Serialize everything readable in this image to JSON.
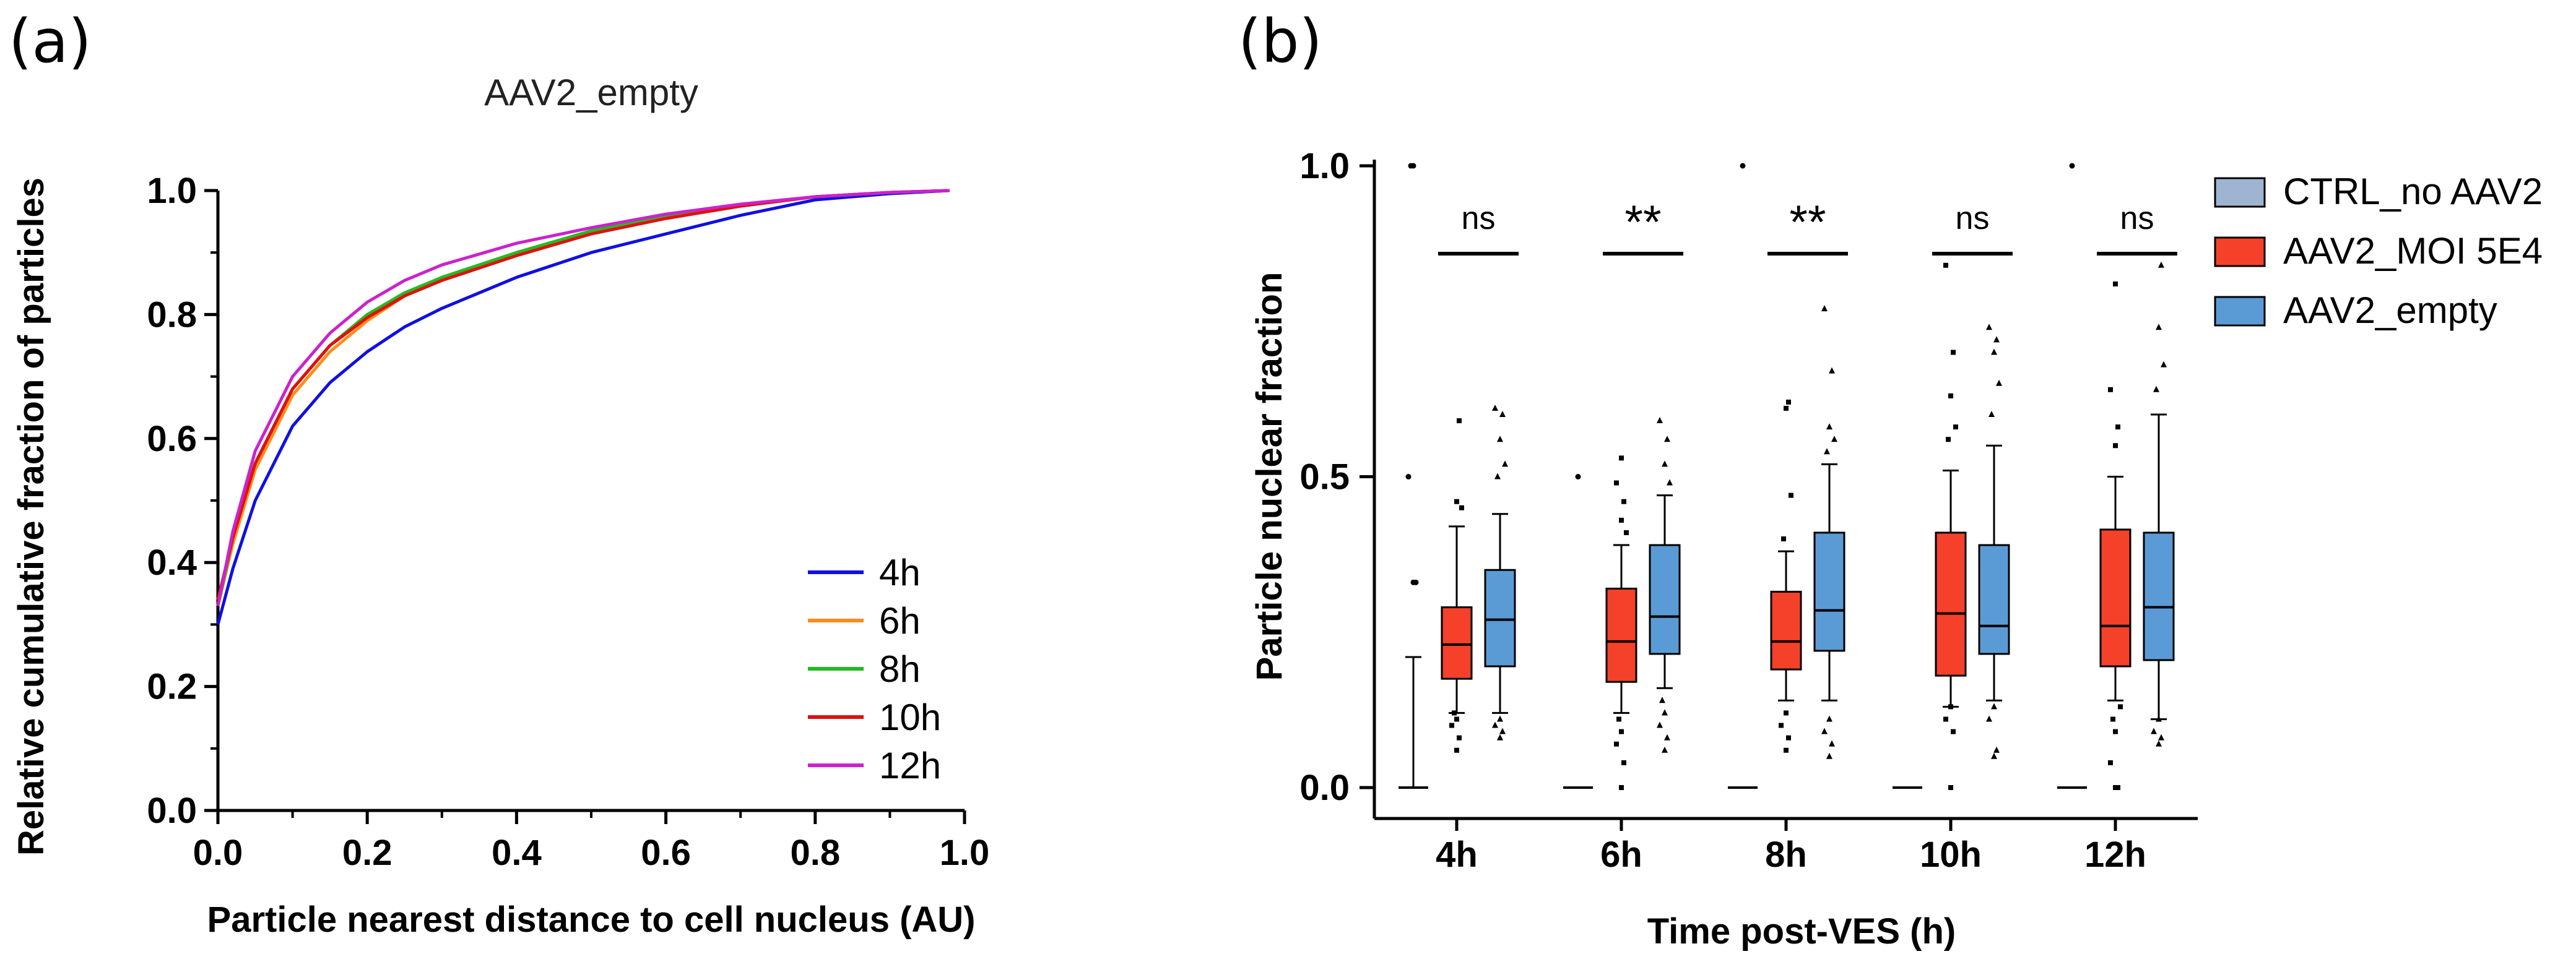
{
  "chart_data": [
    {
      "panel": "(a)",
      "type": "line",
      "title": "AAV2_empty",
      "xlabel": "Particle nearest distance to cell nucleus (AU)",
      "ylabel": "Relative cumulative fraction of particles",
      "xlim": [
        0.0,
        1.0
      ],
      "ylim": [
        0.0,
        1.0
      ],
      "xticks": [
        "0.0",
        "0.2",
        "0.4",
        "0.6",
        "0.8",
        "1.0"
      ],
      "yticks": [
        "0.0",
        "0.2",
        "0.4",
        "0.6",
        "0.8",
        "1.0"
      ],
      "legend_position": "bottom-right",
      "x": [
        0.0,
        0.02,
        0.05,
        0.1,
        0.15,
        0.2,
        0.25,
        0.3,
        0.4,
        0.5,
        0.6,
        0.7,
        0.8,
        0.9,
        0.98
      ],
      "series": [
        {
          "name": "4h",
          "color": "#1010e0",
          "values": [
            0.3,
            0.39,
            0.5,
            0.62,
            0.69,
            0.74,
            0.78,
            0.81,
            0.86,
            0.9,
            0.93,
            0.96,
            0.985,
            0.995,
            1.0
          ]
        },
        {
          "name": "6h",
          "color": "#ff8c1a",
          "values": [
            0.33,
            0.43,
            0.55,
            0.67,
            0.74,
            0.79,
            0.83,
            0.86,
            0.9,
            0.93,
            0.955,
            0.975,
            0.99,
            0.997,
            1.0
          ]
        },
        {
          "name": "8h",
          "color": "#22bb22",
          "values": [
            0.33,
            0.44,
            0.56,
            0.68,
            0.75,
            0.8,
            0.835,
            0.86,
            0.9,
            0.935,
            0.96,
            0.977,
            0.99,
            0.997,
            1.0
          ]
        },
        {
          "name": "10h",
          "color": "#e01010",
          "values": [
            0.34,
            0.44,
            0.56,
            0.68,
            0.75,
            0.795,
            0.83,
            0.855,
            0.895,
            0.93,
            0.955,
            0.975,
            0.99,
            0.997,
            1.0
          ]
        },
        {
          "name": "12h",
          "color": "#cc22cc",
          "values": [
            0.33,
            0.45,
            0.58,
            0.7,
            0.77,
            0.82,
            0.855,
            0.88,
            0.915,
            0.94,
            0.962,
            0.978,
            0.99,
            0.997,
            1.0
          ]
        }
      ]
    },
    {
      "panel": "(b)",
      "type": "box",
      "xlabel": "Time post-VES (h)",
      "ylabel": "Particle nuclear fraction",
      "ylim": [
        0.0,
        1.0
      ],
      "yticks": [
        "0.0",
        "0.5",
        "1.0"
      ],
      "categories": [
        "4h",
        "6h",
        "8h",
        "10h",
        "12h"
      ],
      "significance": [
        "ns",
        "**",
        "**",
        "ns",
        "ns"
      ],
      "legend": [
        {
          "name": "CTRL_no AAV2",
          "color": "#9fb4d0"
        },
        {
          "name": "AAV2_MOI 5E4",
          "color": "#f5402a"
        },
        {
          "name": "AAV2_empty",
          "color": "#5b9bd5"
        }
      ],
      "groups": [
        {
          "category": "4h",
          "ctrl": {
            "min": 0.0,
            "q1": 0.0,
            "median": 0.0,
            "q3": 0.0,
            "max": 0.21,
            "outliers": [
              0.33,
              0.33,
              0.5,
              1.0,
              1.0
            ]
          },
          "moi": {
            "min": 0.12,
            "q1": 0.175,
            "median": 0.23,
            "q3": 0.29,
            "max": 0.42,
            "outliers": [
              0.06,
              0.08,
              0.1,
              0.11,
              0.12,
              0.45,
              0.46,
              0.59
            ]
          },
          "empty": {
            "min": 0.12,
            "q1": 0.195,
            "median": 0.27,
            "q3": 0.35,
            "max": 0.44,
            "outliers": [
              0.08,
              0.09,
              0.1,
              0.11,
              0.5,
              0.52,
              0.56,
              0.6,
              0.61
            ]
          }
        },
        {
          "category": "6h",
          "ctrl": {
            "min": 0.0,
            "q1": 0.0,
            "median": 0.0,
            "q3": 0.0,
            "max": 0.0,
            "outliers": [
              0.5
            ]
          },
          "moi": {
            "min": 0.12,
            "q1": 0.17,
            "median": 0.235,
            "q3": 0.32,
            "max": 0.39,
            "outliers": [
              0.0,
              0.04,
              0.07,
              0.09,
              0.11,
              0.41,
              0.43,
              0.46,
              0.49,
              0.53
            ]
          },
          "empty": {
            "min": 0.16,
            "q1": 0.215,
            "median": 0.275,
            "q3": 0.39,
            "max": 0.47,
            "outliers": [
              0.06,
              0.08,
              0.1,
              0.12,
              0.14,
              0.49,
              0.52,
              0.56,
              0.59
            ]
          }
        },
        {
          "category": "8h",
          "ctrl": {
            "min": 0.0,
            "q1": 0.0,
            "median": 0.0,
            "q3": 0.0,
            "max": 0.0,
            "outliers": [
              1.0
            ]
          },
          "moi": {
            "min": 0.14,
            "q1": 0.19,
            "median": 0.235,
            "q3": 0.315,
            "max": 0.38,
            "outliers": [
              0.06,
              0.08,
              0.1,
              0.12,
              0.4,
              0.47,
              0.61,
              0.62
            ]
          },
          "empty": {
            "min": 0.14,
            "q1": 0.22,
            "median": 0.285,
            "q3": 0.41,
            "max": 0.52,
            "outliers": [
              0.05,
              0.07,
              0.09,
              0.11,
              0.54,
              0.56,
              0.58,
              0.67,
              0.77
            ]
          }
        },
        {
          "category": "10h",
          "ctrl": {
            "min": 0.0,
            "q1": 0.0,
            "median": 0.0,
            "q3": 0.0,
            "max": 0.0,
            "outliers": []
          },
          "moi": {
            "min": 0.13,
            "q1": 0.18,
            "median": 0.28,
            "q3": 0.41,
            "max": 0.51,
            "outliers": [
              0.0,
              0.09,
              0.11,
              0.13,
              0.56,
              0.58,
              0.63,
              0.7,
              0.84
            ]
          },
          "empty": {
            "min": 0.14,
            "q1": 0.215,
            "median": 0.26,
            "q3": 0.39,
            "max": 0.55,
            "outliers": [
              0.05,
              0.06,
              0.11,
              0.13,
              0.6,
              0.65,
              0.7,
              0.72,
              0.74
            ]
          }
        },
        {
          "category": "12h",
          "ctrl": {
            "min": 0.0,
            "q1": 0.0,
            "median": 0.0,
            "q3": 0.0,
            "max": 0.0,
            "outliers": [
              1.0
            ]
          },
          "moi": {
            "min": 0.14,
            "q1": 0.195,
            "median": 0.26,
            "q3": 0.415,
            "max": 0.5,
            "outliers": [
              0.0,
              0.0,
              0.04,
              0.09,
              0.11,
              0.13,
              0.55,
              0.58,
              0.64,
              0.81
            ]
          },
          "empty": {
            "min": 0.11,
            "q1": 0.205,
            "median": 0.29,
            "q3": 0.41,
            "max": 0.6,
            "outliers": [
              0.07,
              0.08,
              0.09,
              0.11,
              0.64,
              0.68,
              0.74,
              0.84
            ]
          }
        }
      ]
    }
  ]
}
